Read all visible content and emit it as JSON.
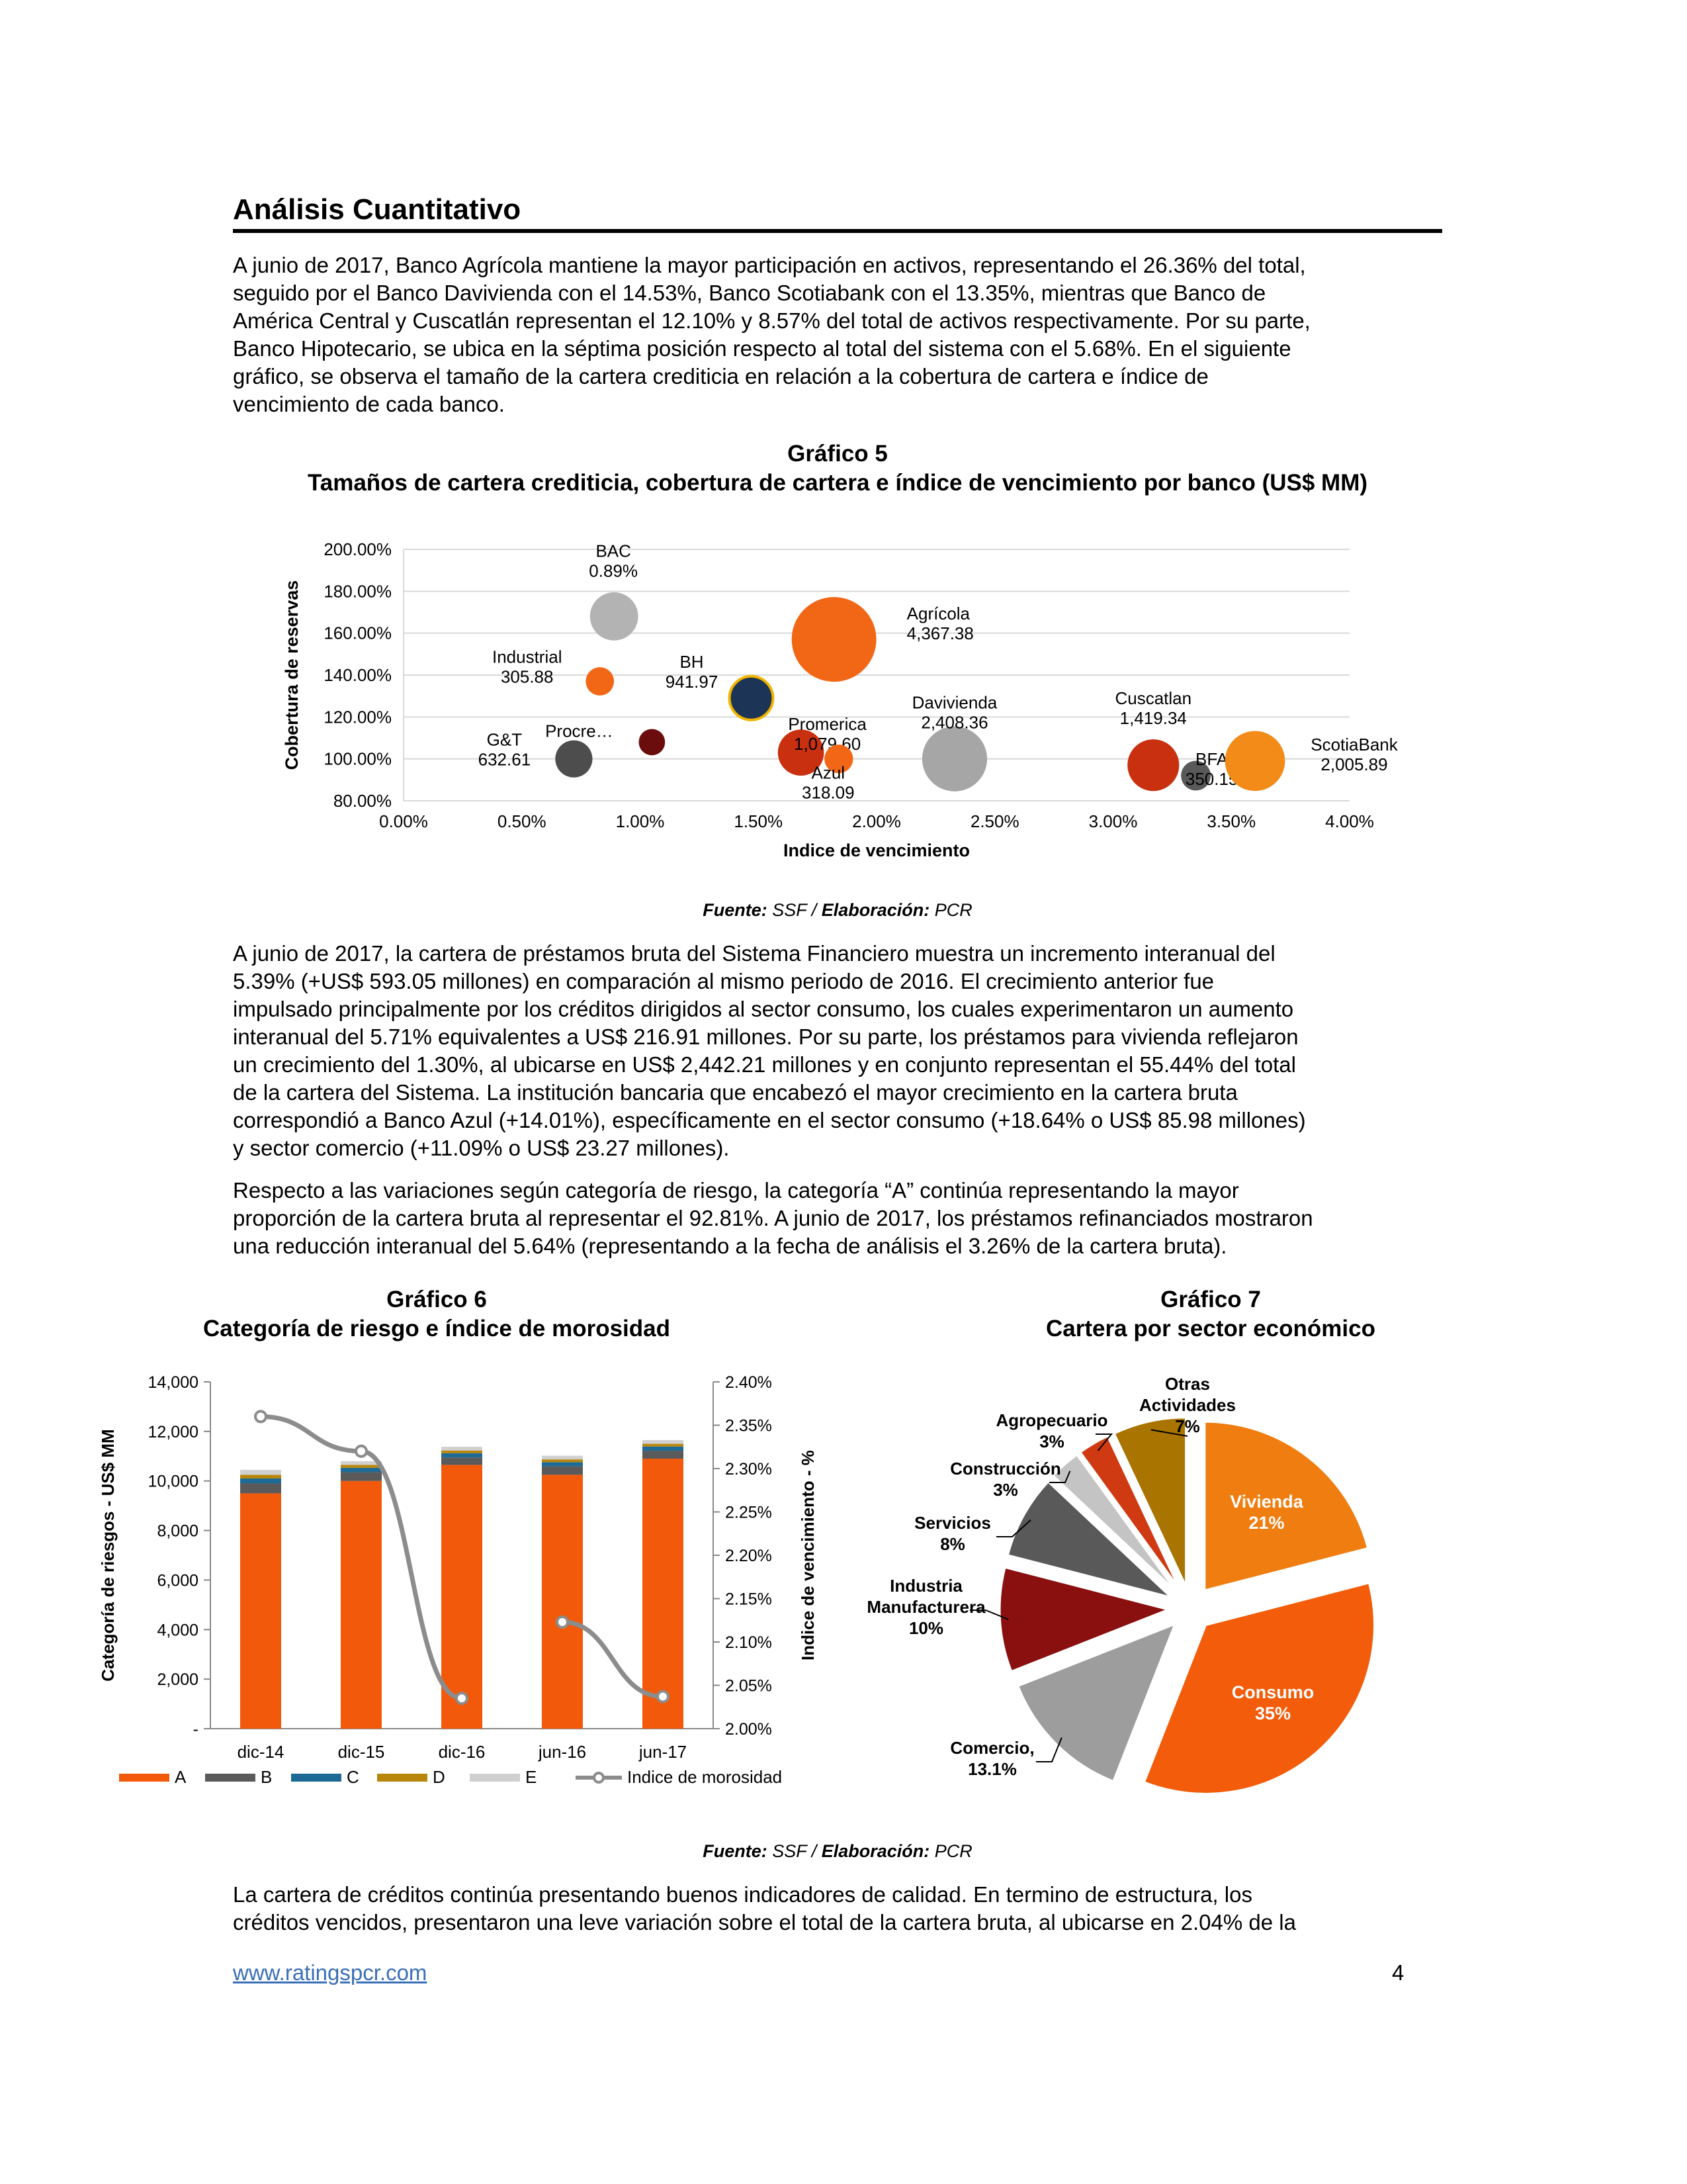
{
  "section_title": "Análisis Cuantitativo",
  "para1": [
    "A junio de 2017, Banco Agrícola mantiene la mayor participación en activos, representando el 26.36% del total,",
    "seguido por el Banco Davivienda con el 14.53%, Banco Scotiabank con el 13.35%, mientras que Banco de",
    "América Central y Cuscatlán representan el 12.10% y 8.57% del total de activos respectivamente. Por su parte,",
    "Banco Hipotecario, se ubica en la séptima posición respecto al total del sistema con el 5.68%. En el siguiente",
    "gráfico, se observa el tamaño de la cartera crediticia en relación a la cobertura de cartera e índice de",
    "vencimiento de cada banco."
  ],
  "chart5": {
    "number": "Gráfico 5",
    "title": "Tamaños de cartera crediticia, cobertura de cartera e índice de vencimiento por banco (US$ MM)",
    "source_prefix": "Fuente:",
    "source_mid": " SSF / ",
    "source_elab": "Elaboración:",
    "source_suffix": " PCR"
  },
  "para2": [
    "A junio de 2017, la cartera de préstamos bruta del Sistema Financiero muestra un incremento interanual del",
    "5.39% (+US$ 593.05 millones) en comparación al mismo periodo de 2016. El crecimiento anterior fue",
    "impulsado principalmente por los créditos dirigidos al sector consumo, los cuales experimentaron un aumento",
    "interanual del 5.71% equivalentes a US$ 216.91 millones. Por su parte, los préstamos para vivienda reflejaron",
    "un crecimiento del 1.30%, al ubicarse en US$ 2,442.21 millones y en conjunto representan el 55.44% del total",
    "de la cartera del Sistema. La institución bancaria que encabezó el mayor crecimiento en la cartera bruta",
    "correspondió a Banco Azul (+14.01%), específicamente en el sector consumo (+18.64% o US$ 85.98 millones)",
    "y sector comercio (+11.09% o US$ 23.27 millones)."
  ],
  "para3": [
    "Respecto a las variaciones según categoría de riesgo, la categoría “A” continúa representando la mayor",
    "proporción de la cartera bruta al representar el 92.81%. A junio de 2017, los préstamos refinanciados mostraron",
    "una reducción interanual del 5.64% (representando a la fecha de análisis el 3.26% de la cartera bruta)."
  ],
  "chart6": {
    "number": "Gráfico 6",
    "title": "Categoría de riesgo e índice de morosidad"
  },
  "chart7": {
    "number": "Gráfico 7",
    "title": "Cartera por sector económico"
  },
  "source2": {
    "source_prefix": "Fuente:",
    "source_mid": " SSF / ",
    "source_elab": "Elaboración:",
    "source_suffix": " PCR"
  },
  "para4": [
    "La cartera de créditos continúa presentando buenos indicadores de calidad. En termino de estructura, los",
    "créditos vencidos, presentaron una leve variación sobre el total de la cartera bruta, al ubicarse en 2.04% de la"
  ],
  "footer": {
    "link": "www.ratingspcr.com",
    "page": "4"
  },
  "chart_data": [
    {
      "type": "bubble",
      "xlabel": "Indice de vencimiento",
      "ylabel": "Cobertura de reservas",
      "xlim": [
        0,
        4
      ],
      "ylim": [
        80,
        200
      ],
      "xticks": [
        "0.00%",
        "0.50%",
        "1.00%",
        "1.50%",
        "2.00%",
        "2.50%",
        "3.00%",
        "3.50%",
        "4.00%"
      ],
      "yticks": [
        "80.00%",
        "100.00%",
        "120.00%",
        "140.00%",
        "160.00%",
        "180.00%",
        "200.00%"
      ],
      "grid": true,
      "points": [
        {
          "name": "BAC",
          "value": "0.89%",
          "x": 0.89,
          "y": 168,
          "size": 1200,
          "color": "#b3b3b3"
        },
        {
          "name": "Agrícola",
          "value": "4,367.38",
          "x": 1.82,
          "y": 157,
          "size": 4367.38,
          "color": "#f26716"
        },
        {
          "name": "Industrial",
          "value": "305.88",
          "x": 0.83,
          "y": 137,
          "size": 305.88,
          "color": "#f26716"
        },
        {
          "name": "BH",
          "value": "941.97",
          "x": 1.47,
          "y": 129,
          "size": 941.97,
          "color": "#1c3455"
        },
        {
          "name": "Procre…",
          "value": "",
          "x": 1.05,
          "y": 108,
          "size": 250,
          "color": "#6b0d0d"
        },
        {
          "name": "Promerica",
          "value": "1,079.60",
          "x": 1.68,
          "y": 103,
          "size": 1079.6,
          "color": "#c93010"
        },
        {
          "name": "Azul",
          "value": "318.09",
          "x": 1.84,
          "y": 100,
          "size": 318.09,
          "color": "#f26716"
        },
        {
          "name": "G&T",
          "value": "632.61",
          "x": 0.72,
          "y": 100,
          "size": 632.61,
          "color": "#4d4d4d"
        },
        {
          "name": "Davivienda",
          "value": "2,408.36",
          "x": 2.33,
          "y": 100,
          "size": 2408.36,
          "color": "#a6a6a6"
        },
        {
          "name": "Cuscatlan",
          "value": "1,419.34",
          "x": 3.17,
          "y": 97,
          "size": 1419.34,
          "color": "#c93010"
        },
        {
          "name": "BFA",
          "value": "350.15",
          "x": 3.35,
          "y": 92,
          "size": 350.15,
          "color": "#595959"
        },
        {
          "name": "ScotiaBank",
          "value": "2,005.89",
          "x": 3.6,
          "y": 99,
          "size": 2005.89,
          "color": "#f28b18"
        }
      ]
    },
    {
      "type": "bar",
      "ylabel": "Categoría de riesgos - US$ MM",
      "y2label": "Indice de vencimiento - %",
      "categories": [
        "dic-14",
        "dic-15",
        "dic-16",
        "jun-16",
        "jun-17"
      ],
      "ylim": [
        0,
        14000
      ],
      "y2lim": [
        2.0,
        2.4
      ],
      "yticks": [
        "-",
        "2,000",
        "4,000",
        "6,000",
        "8,000",
        "10,000",
        "12,000",
        "14,000"
      ],
      "y2ticks": [
        "2.00%",
        "2.05%",
        "2.10%",
        "2.15%",
        "2.20%",
        "2.25%",
        "2.30%",
        "2.35%",
        "2.40%"
      ],
      "series": [
        {
          "name": "A",
          "color": "#f2590a",
          "values": [
            9500,
            10000,
            10650,
            10250,
            10900
          ]
        },
        {
          "name": "B",
          "color": "#5a5a5a",
          "values": [
            400,
            350,
            300,
            340,
            320
          ]
        },
        {
          "name": "C",
          "color": "#1d6a96",
          "values": [
            200,
            180,
            170,
            170,
            170
          ]
        },
        {
          "name": "D",
          "color": "#b8860b",
          "values": [
            150,
            120,
            110,
            110,
            110
          ]
        },
        {
          "name": "E",
          "color": "#d0d0d0",
          "values": [
            200,
            150,
            150,
            150,
            150
          ]
        }
      ],
      "line": {
        "name": "Indice de morosidad",
        "color": "#8c8c8c",
        "segments": [
          [
            [
              0,
              2.36
            ],
            [
              1,
              2.32
            ],
            [
              2,
              2.035
            ]
          ],
          [
            [
              3,
              2.123
            ],
            [
              4,
              2.037
            ]
          ]
        ]
      }
    },
    {
      "type": "pie",
      "slices": [
        {
          "label": "Vivienda",
          "pct_label": "21%",
          "value": 21,
          "color": "#f07d10",
          "inside": true
        },
        {
          "label": "Consumo",
          "pct_label": "35%",
          "value": 35,
          "color": "#f25c0a",
          "inside": true
        },
        {
          "label": "Comercio,",
          "pct_label": "13.1%",
          "value": 13.1,
          "color": "#9d9d9d",
          "inside": false
        },
        {
          "label": "Industria Manufacturera",
          "pct_label": "10%",
          "value": 10,
          "color": "#8a0f0f",
          "inside": false
        },
        {
          "label": "Servicios",
          "pct_label": "8%",
          "value": 8,
          "color": "#595959",
          "inside": false
        },
        {
          "label": "Construcción",
          "pct_label": "3%",
          "value": 3,
          "color": "#c4c4c4",
          "inside": false
        },
        {
          "label": "Agropecuario",
          "pct_label": "3%",
          "value": 3,
          "color": "#cf3a12",
          "inside": false
        },
        {
          "label": "Otras Actividades",
          "pct_label": "7%",
          "value": 7,
          "color": "#a97400",
          "inside": false
        }
      ]
    }
  ]
}
